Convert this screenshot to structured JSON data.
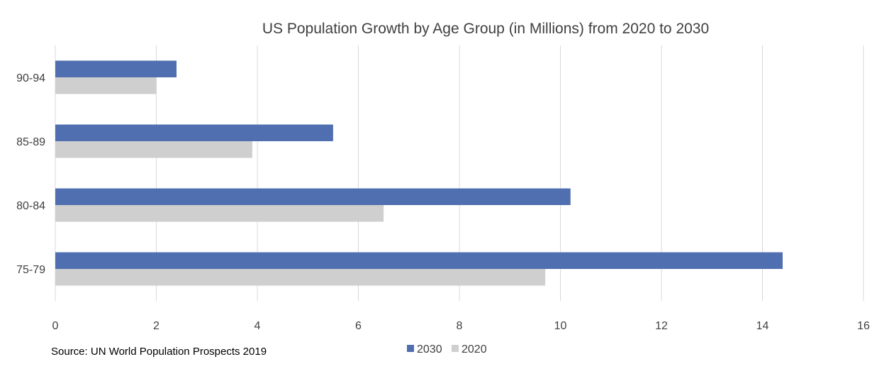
{
  "chart_data": {
    "type": "bar",
    "orientation": "horizontal",
    "title": "US Population Growth by Age Group (in Millions) from 2020 to 2030",
    "categories": [
      "75-79",
      "80-84",
      "85-89",
      "90-94"
    ],
    "series": [
      {
        "name": "2030",
        "color": "#4f6fb0",
        "values": [
          14.4,
          10.2,
          5.5,
          2.4
        ]
      },
      {
        "name": "2020",
        "color": "#d0cfcf",
        "values": [
          9.7,
          6.5,
          3.9,
          2.0
        ]
      }
    ],
    "xlim": [
      0,
      16
    ],
    "x_ticks": [
      0,
      2,
      4,
      6,
      8,
      10,
      12,
      14,
      16
    ],
    "x_tick_labels": [
      "0",
      "2",
      "4",
      "6",
      "8",
      "10",
      "12",
      "14",
      "16"
    ],
    "xlabel": "",
    "ylabel": "",
    "grid": true,
    "legend_position": "bottom"
  },
  "source": "Source: UN World Population Prospects  2019"
}
